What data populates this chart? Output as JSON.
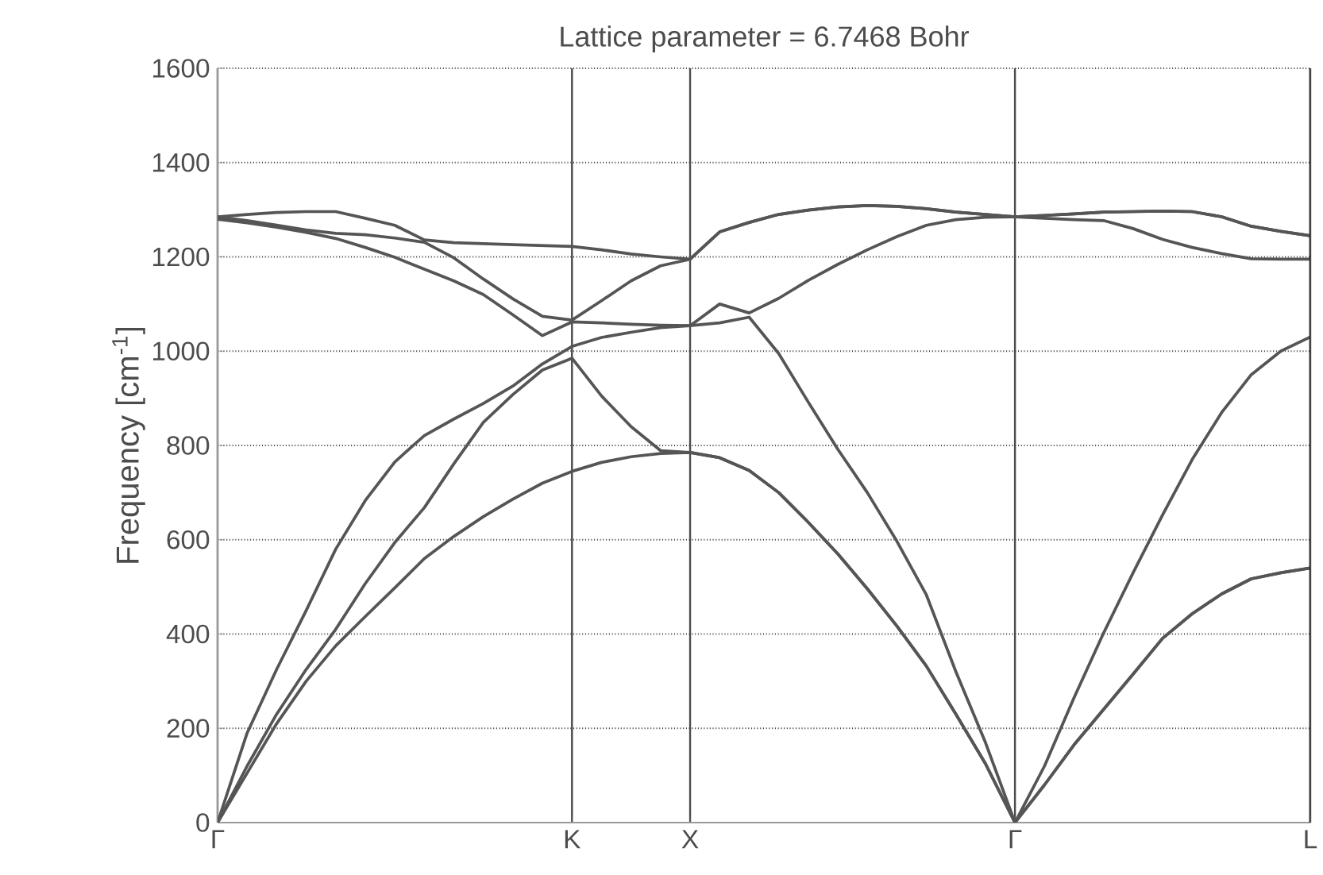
{
  "chart_data": {
    "type": "line",
    "title": "Lattice parameter = 6.7468 Bohr",
    "ylabel": "Frequency [cm$^{-1}$]",
    "categories": [
      "Γ",
      null,
      null,
      null,
      null,
      null,
      null,
      null,
      null,
      null,
      null,
      null,
      "K",
      null,
      null,
      null,
      "X",
      null,
      null,
      null,
      null,
      null,
      null,
      null,
      null,
      null,
      null,
      "Γ",
      null,
      null,
      null,
      null,
      null,
      null,
      null,
      null,
      null,
      "L"
    ],
    "series": [
      {
        "color": "#555555",
        "values": [
          0,
          105,
          210,
          300,
          375,
          437,
          498,
          560,
          607,
          649,
          686,
          720,
          745,
          764,
          776,
          783,
          785,
          774,
          747,
          700,
          637,
          570,
          496,
          417,
          332,
          230,
          125,
          0,
          80,
          165,
          240,
          315,
          391,
          443,
          485,
          517,
          530,
          540
        ]
      },
      {
        "color": "#555555",
        "values": [
          0,
          120,
          230,
          325,
          410,
          507,
          594,
          668,
          761,
          849,
          908,
          960,
          985,
          905,
          840,
          789,
          785,
          774,
          747,
          700,
          637,
          570,
          496,
          417,
          332,
          230,
          125,
          0,
          80,
          165,
          240,
          315,
          391,
          443,
          485,
          517,
          530,
          540
        ]
      },
      {
        "color": "#555555",
        "values": [
          0,
          190,
          325,
          450,
          580,
          683,
          765,
          821,
          856,
          889,
          926,
          973,
          1010,
          1029,
          1040,
          1050,
          1054,
          1060,
          1072,
          995,
          892,
          792,
          700,
          597,
          483,
          320,
          170,
          0,
          120,
          265,
          402,
          530,
          653,
          770,
          870,
          950,
          1000,
          1030
        ]
      },
      {
        "color": "#555555",
        "values": [
          1280,
          1272,
          1263,
          1252,
          1239,
          1220,
          1199,
          1174,
          1149,
          1120,
          1077,
          1033,
          1062,
          1060,
          1057,
          1055,
          1054,
          1100,
          1081,
          1112,
          1150,
          1184,
          1215,
          1243,
          1267,
          1279,
          1284,
          1285,
          1282,
          1279,
          1277,
          1260,
          1237,
          1220,
          1207,
          1196,
          1195,
          1195
        ]
      },
      {
        "color": "#555555",
        "values": [
          1285,
          1277,
          1267,
          1257,
          1250,
          1247,
          1240,
          1231,
          1198,
          1153,
          1111,
          1074,
          1066,
          1107,
          1149,
          1181,
          1195,
          1253,
          1273,
          1290,
          1299,
          1306,
          1309,
          1307,
          1302,
          1295,
          1290,
          1285,
          1288,
          1291,
          1295,
          1296,
          1297,
          1296,
          1285,
          1265,
          1254,
          1245
        ]
      },
      {
        "color": "#555555",
        "values": [
          1285,
          1290,
          1294,
          1296,
          1296,
          1282,
          1267,
          1236,
          1230,
          1228,
          1226,
          1224,
          1222,
          1215,
          1206,
          1200,
          1195,
          1253,
          1273,
          1290,
          1299,
          1306,
          1309,
          1307,
          1302,
          1295,
          1290,
          1285,
          1288,
          1291,
          1295,
          1296,
          1297,
          1296,
          1285,
          1265,
          1254,
          1245
        ]
      }
    ],
    "ylim": [
      0,
      1600
    ],
    "yticks": [
      0,
      200,
      400,
      600,
      800,
      1000,
      1200,
      1400,
      1600
    ],
    "grid": true
  }
}
